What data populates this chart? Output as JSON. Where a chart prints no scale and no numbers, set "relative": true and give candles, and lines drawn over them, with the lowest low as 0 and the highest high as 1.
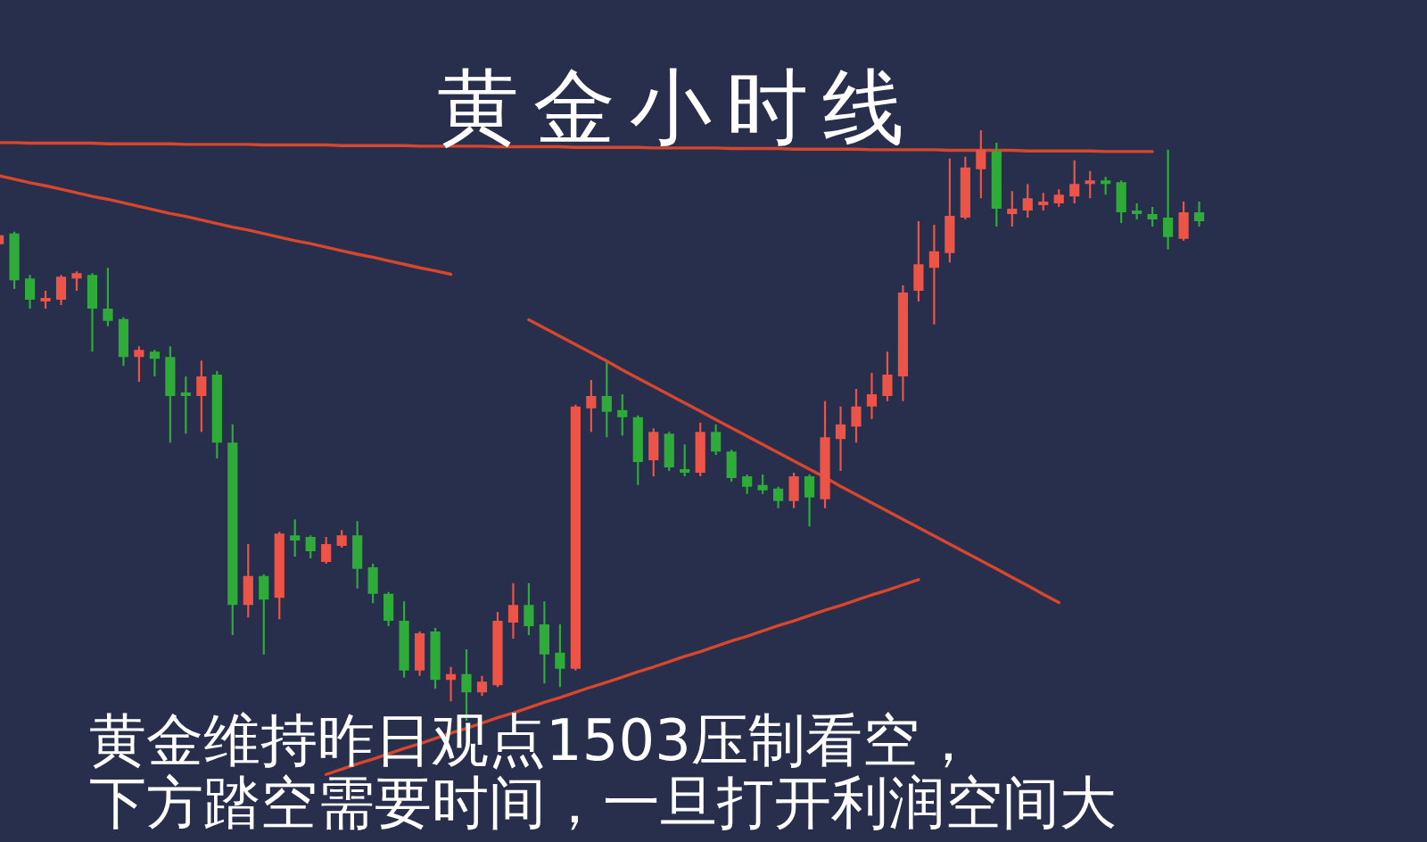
{
  "chart_data": {
    "type": "candlestick",
    "title": "黄金小时线",
    "annotations": [
      "黄金维持昨日观点1503压制看空，",
      "下方踏空需要时间，一旦打开利润空间大"
    ],
    "relative": true,
    "categories": [
      null,
      null,
      null,
      null,
      null,
      null,
      null,
      null,
      null,
      null,
      null,
      null,
      null,
      null,
      null,
      null,
      null,
      null,
      null,
      null,
      null,
      null,
      null,
      null,
      null,
      null,
      null,
      null,
      null,
      null,
      null,
      null,
      null,
      null,
      null,
      null,
      null,
      null,
      null,
      null,
      null,
      null,
      null,
      null,
      null,
      null,
      null,
      null,
      null,
      null,
      null,
      null,
      null,
      null,
      null,
      null,
      null,
      null,
      null,
      null,
      null,
      null,
      null,
      null,
      null,
      null,
      null,
      null,
      null,
      null,
      null,
      null,
      null,
      null,
      null,
      null,
      null,
      null
    ],
    "ohlc": [
      [
        0.807,
        0.825,
        0.804,
        0.822
      ],
      [
        0.825,
        0.828,
        0.731,
        0.746
      ],
      [
        0.749,
        0.755,
        0.698,
        0.713
      ],
      [
        0.71,
        0.728,
        0.698,
        0.716
      ],
      [
        0.713,
        0.755,
        0.704,
        0.752
      ],
      [
        0.749,
        0.761,
        0.728,
        0.758
      ],
      [
        0.755,
        0.758,
        0.625,
        0.698
      ],
      [
        0.698,
        0.767,
        0.668,
        0.677
      ],
      [
        0.68,
        0.683,
        0.601,
        0.616
      ],
      [
        0.616,
        0.634,
        0.574,
        0.628
      ],
      [
        0.625,
        0.628,
        0.583,
        0.613
      ],
      [
        0.616,
        0.634,
        0.471,
        0.55
      ],
      [
        0.556,
        0.583,
        0.486,
        0.55
      ],
      [
        0.55,
        0.61,
        0.489,
        0.583
      ],
      [
        0.586,
        0.592,
        0.444,
        0.471
      ],
      [
        0.471,
        0.502,
        0.145,
        0.196
      ],
      [
        0.196,
        0.299,
        0.175,
        0.245
      ],
      [
        0.245,
        0.248,
        0.112,
        0.205
      ],
      [
        0.208,
        0.32,
        0.172,
        0.317
      ],
      [
        0.314,
        0.341,
        0.278,
        0.305
      ],
      [
        0.311,
        0.314,
        0.275,
        0.287
      ],
      [
        0.269,
        0.311,
        0.266,
        0.299
      ],
      [
        0.296,
        0.323,
        0.293,
        0.314
      ],
      [
        0.314,
        0.338,
        0.224,
        0.257
      ],
      [
        0.26,
        0.266,
        0.199,
        0.215
      ],
      [
        0.215,
        0.218,
        0.16,
        0.169
      ],
      [
        0.169,
        0.202,
        0.073,
        0.085
      ],
      [
        0.085,
        0.151,
        0.076,
        0.148
      ],
      [
        0.151,
        0.157,
        0.054,
        0.069
      ],
      [
        0.069,
        0.091,
        0.033,
        0.079
      ],
      [
        0.079,
        0.121,
        0,
        0.048
      ],
      [
        0.048,
        0.076,
        0.042,
        0.066
      ],
      [
        0.06,
        0.184,
        0.057,
        0.169
      ],
      [
        0.166,
        0.233,
        0.139,
        0.196
      ],
      [
        0.196,
        0.233,
        0.145,
        0.16
      ],
      [
        0.163,
        0.202,
        0.063,
        0.112
      ],
      [
        0.115,
        0.163,
        0.057,
        0.088
      ],
      [
        0.088,
        0.535,
        0.085,
        0.532
      ],
      [
        0.529,
        0.577,
        0.489,
        0.55
      ],
      [
        0.55,
        0.607,
        0.48,
        0.523
      ],
      [
        0.526,
        0.553,
        0.483,
        0.514
      ],
      [
        0.514,
        0.517,
        0.399,
        0.438
      ],
      [
        0.441,
        0.495,
        0.414,
        0.489
      ],
      [
        0.486,
        0.489,
        0.423,
        0.429
      ],
      [
        0.426,
        0.468,
        0.414,
        0.42
      ],
      [
        0.42,
        0.505,
        0.414,
        0.489
      ],
      [
        0.489,
        0.502,
        0.45,
        0.456
      ],
      [
        0.456,
        0.459,
        0.405,
        0.411
      ],
      [
        0.414,
        0.417,
        0.384,
        0.396
      ],
      [
        0.399,
        0.417,
        0.384,
        0.39
      ],
      [
        0.393,
        0.396,
        0.36,
        0.372
      ],
      [
        0.372,
        0.42,
        0.36,
        0.414
      ],
      [
        0.414,
        0.417,
        0.329,
        0.378
      ],
      [
        0.375,
        0.541,
        0.36,
        0.48
      ],
      [
        0.477,
        0.532,
        0.423,
        0.502
      ],
      [
        0.498,
        0.562,
        0.471,
        0.532
      ],
      [
        0.532,
        0.589,
        0.511,
        0.553
      ],
      [
        0.55,
        0.625,
        0.541,
        0.586
      ],
      [
        0.583,
        0.737,
        0.541,
        0.725
      ],
      [
        0.728,
        0.846,
        0.71,
        0.773
      ],
      [
        0.767,
        0.84,
        0.671,
        0.795
      ],
      [
        0.792,
        0.952,
        0.776,
        0.855
      ],
      [
        0.852,
        0.955,
        0.849,
        0.937
      ],
      [
        0.934,
        1,
        0.885,
        0.967
      ],
      [
        0.964,
        0.979,
        0.837,
        0.867
      ],
      [
        0.858,
        0.897,
        0.837,
        0.867
      ],
      [
        0.864,
        0.909,
        0.852,
        0.885
      ],
      [
        0.873,
        0.894,
        0.864,
        0.879
      ],
      [
        0.876,
        0.9,
        0.87,
        0.891
      ],
      [
        0.888,
        0.949,
        0.876,
        0.909
      ],
      [
        0.909,
        0.931,
        0.885,
        0.915
      ],
      [
        0.915,
        0.921,
        0.891,
        0.909
      ],
      [
        0.912,
        0.915,
        0.843,
        0.861
      ],
      [
        0.864,
        0.876,
        0.849,
        0.858
      ],
      [
        0.858,
        0.87,
        0.837,
        0.849
      ],
      [
        0.852,
        0.967,
        0.798,
        0.819
      ],
      [
        0.816,
        0.879,
        0.813,
        0.861
      ],
      [
        0.861,
        0.879,
        0.837,
        0.846
      ]
    ],
    "colors": [
      "#ec5447",
      "#2eab38",
      "#2eab38",
      "#ec5447",
      "#ec5447",
      "#ec5447",
      "#2eab38",
      "#2eab38",
      "#2eab38",
      "#ec5447",
      "#2eab38",
      "#2eab38",
      "#2eab38",
      "#ec5447",
      "#2eab38",
      "#2eab38",
      "#ec5447",
      "#2eab38",
      "#ec5447",
      "#2eab38",
      "#2eab38",
      "#ec5447",
      "#ec5447",
      "#2eab38",
      "#2eab38",
      "#2eab38",
      "#2eab38",
      "#ec5447",
      "#2eab38",
      "#ec5447",
      "#2eab38",
      "#ec5447",
      "#ec5447",
      "#ec5447",
      "#2eab38",
      "#2eab38",
      "#2eab38",
      "#ec5447",
      "#ec5447",
      "#2eab38",
      "#2eab38",
      "#2eab38",
      "#ec5447",
      "#2eab38",
      "#2eab38",
      "#ec5447",
      "#2eab38",
      "#2eab38",
      "#2eab38",
      "#2eab38",
      "#2eab38",
      "#ec5447",
      "#2eab38",
      "#ec5447",
      "#ec5447",
      "#ec5447",
      "#ec5447",
      "#ec5447",
      "#ec5447",
      "#ec5447",
      "#ec5447",
      "#ec5447",
      "#ec5447",
      "#ec5447",
      "#2eab38",
      "#ec5447",
      "#ec5447",
      "#ec5447",
      "#ec5447",
      "#ec5447",
      "#ec5447",
      "#2eab38",
      "#2eab38",
      "#2eab38",
      "#2eab38",
      "#2eab38",
      "#ec5447",
      "#2eab38"
    ],
    "series": [
      {
        "type": "line",
        "color": "#d8462c",
        "values": [
          0.979,
          0.979,
          0.978,
          0.978,
          0.978,
          0.978,
          0.978,
          0.977,
          0.977,
          0.977,
          0.977,
          0.977,
          0.976,
          0.976,
          0.976,
          0.976,
          0.976,
          0.975,
          0.975,
          0.975,
          0.975,
          0.975,
          0.974,
          0.974,
          0.974,
          0.974,
          0.974,
          0.973,
          0.973,
          0.973,
          0.973,
          0.973,
          0.972,
          0.972,
          0.972,
          0.972,
          0.972,
          0.971,
          0.971,
          0.971,
          0.971,
          0.971,
          0.97,
          0.97,
          0.97,
          0.97,
          0.97,
          0.969,
          0.969,
          0.969,
          0.969,
          0.968,
          0.968,
          0.968,
          0.968,
          0.968,
          0.967,
          0.967,
          0.967,
          0.967,
          0.967,
          0.966,
          0.966,
          0.966,
          0.966,
          0.966,
          0.965,
          0.965,
          0.965,
          0.965,
          0.965,
          0.964,
          0.964,
          0.964,
          0.964,
          null,
          null,
          null
        ]
      },
      {
        "type": "line",
        "color": "#d8462c",
        "values": [
          0.923,
          0.917,
          0.911,
          0.906,
          0.9,
          0.894,
          0.888,
          0.883,
          0.877,
          0.871,
          0.865,
          0.859,
          0.854,
          0.848,
          0.842,
          0.836,
          0.831,
          0.825,
          0.819,
          0.813,
          0.808,
          0.802,
          0.796,
          0.79,
          0.785,
          0.779,
          0.773,
          0.767,
          0.762,
          0.756,
          null,
          null,
          null,
          null,
          null,
          null,
          null,
          null,
          null,
          null,
          null,
          null,
          null,
          null,
          null,
          null,
          null,
          null,
          null,
          null,
          null,
          null,
          null,
          null,
          null,
          null,
          null,
          null,
          null,
          null,
          null,
          null,
          null,
          null,
          null,
          null,
          null,
          null,
          null,
          null,
          null,
          null,
          null,
          null,
          null,
          null,
          null,
          null
        ]
      },
      {
        "type": "line",
        "color": "#d8462c",
        "values": [
          null,
          null,
          null,
          null,
          null,
          null,
          null,
          null,
          null,
          null,
          null,
          null,
          null,
          null,
          null,
          null,
          null,
          null,
          null,
          null,
          null,
          null,
          null,
          null,
          null,
          null,
          null,
          null,
          null,
          null,
          null,
          null,
          null,
          null,
          0.679,
          0.665,
          0.651,
          0.637,
          0.623,
          0.609,
          0.594,
          0.58,
          0.566,
          0.552,
          0.538,
          0.524,
          0.51,
          0.496,
          0.482,
          0.468,
          0.454,
          0.44,
          0.426,
          0.412,
          0.397,
          0.383,
          0.369,
          0.355,
          0.341,
          0.327,
          0.313,
          0.299,
          0.285,
          0.271,
          0.257,
          0.243,
          0.229,
          0.214,
          0.2,
          null,
          null,
          null,
          null,
          null,
          null,
          null,
          null,
          null
        ]
      },
      {
        "type": "line",
        "color": "#d8462c",
        "values": [
          null,
          null,
          null,
          null,
          null,
          null,
          null,
          null,
          null,
          null,
          null,
          null,
          null,
          null,
          null,
          null,
          null,
          null,
          null,
          null,
          null,
          -0.091,
          -0.082,
          -0.073,
          -0.065,
          -0.056,
          -0.047,
          -0.039,
          -0.03,
          -0.021,
          -0.013,
          -0.004,
          0.005,
          0.013,
          0.022,
          0.031,
          0.039,
          0.048,
          0.057,
          0.065,
          0.074,
          0.083,
          0.091,
          0.1,
          0.109,
          0.117,
          0.126,
          0.135,
          0.143,
          0.152,
          0.161,
          0.169,
          0.178,
          0.187,
          0.195,
          0.204,
          0.213,
          0.221,
          0.23,
          0.239,
          null,
          null,
          null,
          null,
          null,
          null,
          null,
          null,
          null,
          null,
          null,
          null,
          null,
          null,
          null,
          null,
          null,
          null
        ]
      }
    ]
  }
}
